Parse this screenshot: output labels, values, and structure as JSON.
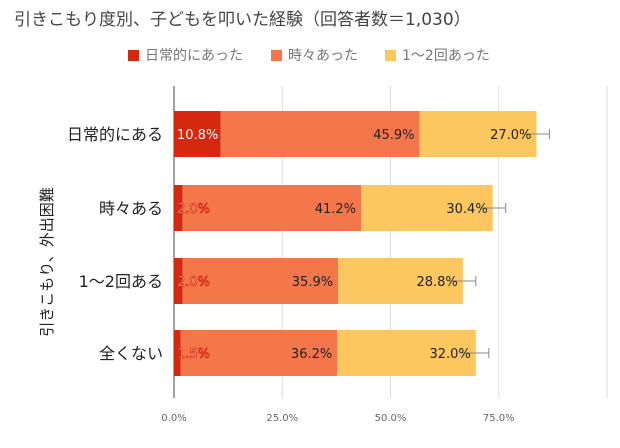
{
  "chart_data": {
    "type": "bar",
    "orientation": "horizontal",
    "stacked": true,
    "title": "引きこもり度別、子どもを叩いた経験（回答者数＝1,030）",
    "ylabel": "引きこもり、外出困難",
    "xlabel": "",
    "categories": [
      "日常的にある",
      "時々ある",
      "1～2回ある",
      "全くない"
    ],
    "series": [
      {
        "name": "日常的にあった",
        "color": "#d4290f",
        "values": [
          10.8,
          2.0,
          2.0,
          1.5
        ],
        "labels": [
          "10.8%",
          "2.0%",
          "2.0%",
          "1.5%"
        ]
      },
      {
        "name": "時々あった",
        "color": "#f4774b",
        "values": [
          45.9,
          41.2,
          35.9,
          36.2
        ],
        "labels": [
          "45.9%",
          "41.2%",
          "35.9%",
          "36.2%"
        ]
      },
      {
        "name": "1～2回あった",
        "color": "#fdc75f",
        "values": [
          27.0,
          30.4,
          28.8,
          32.0
        ],
        "labels": [
          "27.0%",
          "30.4%",
          "28.8%",
          "32.0%"
        ]
      }
    ],
    "error_bars": true,
    "xlim": [
      0,
      100
    ],
    "xticks": [
      0,
      25,
      50,
      75
    ],
    "xtick_labels": [
      "0.0%",
      "25.0%",
      "50.0%",
      "75.0%"
    ],
    "grid": true,
    "legend": "top-center"
  }
}
